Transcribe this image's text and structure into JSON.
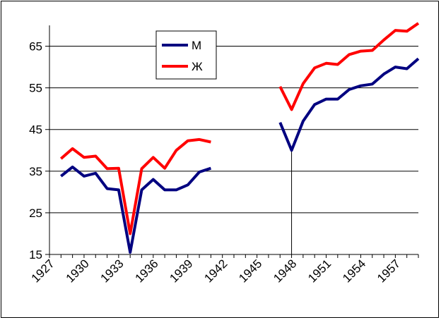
{
  "chart_data": {
    "type": "line",
    "title": "",
    "xlabel": "",
    "ylabel": "",
    "xlim": [
      1927,
      1959
    ],
    "ylim": [
      15,
      70
    ],
    "y_ticks": [
      15,
      25,
      35,
      45,
      55,
      65
    ],
    "x_ticks": [
      1927,
      1930,
      1933,
      1936,
      1939,
      1942,
      1945,
      1948,
      1951,
      1954,
      1957
    ],
    "grid": "horizontal",
    "legend_position": "top-center",
    "series": [
      {
        "name": "М",
        "color": "#000080",
        "points": [
          [
            1928,
            33.8
          ],
          [
            1929,
            36.0
          ],
          [
            1930,
            33.8
          ],
          [
            1931,
            34.5
          ],
          [
            1932,
            30.8
          ],
          [
            1933,
            30.5
          ],
          [
            1934,
            15.5
          ],
          [
            1935,
            30.5
          ],
          [
            1936,
            33.0
          ],
          [
            1937,
            30.5
          ],
          [
            1938,
            30.5
          ],
          [
            1939,
            31.7
          ],
          [
            1940,
            34.8
          ],
          [
            1941,
            35.7
          ],
          [
            1947,
            46.7
          ],
          [
            1948,
            40.0
          ],
          [
            1949,
            47.0
          ],
          [
            1950,
            51.0
          ],
          [
            1951,
            52.3
          ],
          [
            1952,
            52.3
          ],
          [
            1953,
            54.6
          ],
          [
            1954,
            55.5
          ],
          [
            1955,
            55.9
          ],
          [
            1956,
            58.3
          ],
          [
            1957,
            60.0
          ],
          [
            1958,
            59.6
          ],
          [
            1959,
            62.0
          ]
        ]
      },
      {
        "name": "Ж",
        "color": "#ff0000",
        "points": [
          [
            1928,
            38.0
          ],
          [
            1929,
            40.4
          ],
          [
            1930,
            38.3
          ],
          [
            1931,
            38.6
          ],
          [
            1932,
            35.6
          ],
          [
            1933,
            35.7
          ],
          [
            1934,
            20.0
          ],
          [
            1935,
            35.6
          ],
          [
            1936,
            38.3
          ],
          [
            1937,
            35.7
          ],
          [
            1938,
            40.0
          ],
          [
            1939,
            42.3
          ],
          [
            1940,
            42.6
          ],
          [
            1941,
            42.0
          ],
          [
            1947,
            55.3
          ],
          [
            1948,
            49.8
          ],
          [
            1949,
            56.0
          ],
          [
            1950,
            59.8
          ],
          [
            1951,
            60.9
          ],
          [
            1952,
            60.6
          ],
          [
            1953,
            63.0
          ],
          [
            1954,
            63.8
          ],
          [
            1955,
            64.0
          ],
          [
            1956,
            66.5
          ],
          [
            1957,
            68.8
          ],
          [
            1958,
            68.6
          ],
          [
            1959,
            70.5
          ]
        ]
      }
    ],
    "marker_line_x": 1948
  }
}
